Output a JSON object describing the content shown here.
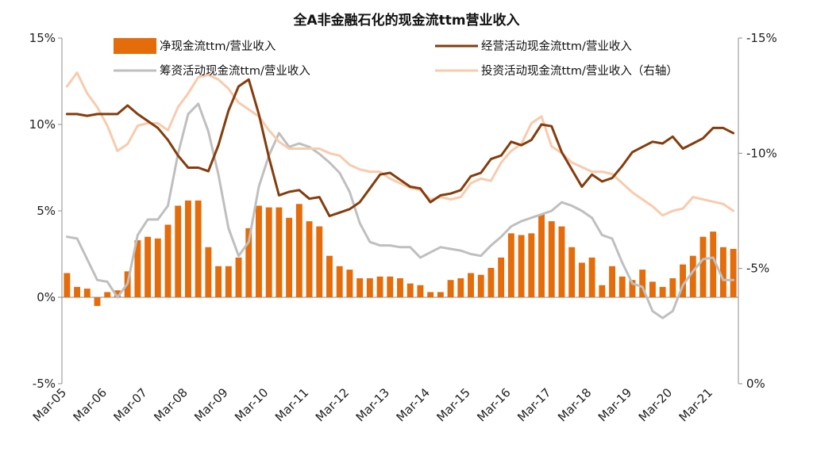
{
  "chart_data": {
    "type": "bar",
    "title": "全A非金融石化的现金流ttm营业收入",
    "x_tick_labels": [
      "Mar-05",
      "Mar-06",
      "Mar-07",
      "Mar-08",
      "Mar-09",
      "Mar-10",
      "Mar-11",
      "Mar-12",
      "Mar-13",
      "Mar-14",
      "Mar-15",
      "Mar-16",
      "Mar-17",
      "Mar-18",
      "Mar-19",
      "Mar-20",
      "Mar-21"
    ],
    "y_left": {
      "range": [
        -5,
        15
      ],
      "ticks": [
        "15%",
        "10%",
        "5%",
        "0%",
        "-5%"
      ]
    },
    "y_right": {
      "range": [
        0,
        -15
      ],
      "ticks": [
        "-15%",
        "-10%",
        "-5%",
        "0%"
      ],
      "reversed": true
    },
    "legend_position": "top",
    "quarters_start": "2005Q1",
    "series": [
      {
        "name": "净现金流ttm/营业收入",
        "type": "bar",
        "axis": "left",
        "color": "#E46C0A",
        "values": [
          1.4,
          0.6,
          0.5,
          -0.5,
          0.3,
          0.4,
          1.5,
          3.3,
          3.5,
          3.4,
          4.2,
          5.3,
          5.6,
          5.6,
          2.9,
          1.8,
          1.8,
          2.3,
          4.0,
          5.3,
          5.2,
          5.2,
          4.6,
          5.4,
          4.4,
          4.1,
          2.4,
          1.8,
          1.6,
          1.1,
          1.1,
          1.2,
          1.2,
          1.1,
          0.8,
          0.7,
          0.3,
          0.3,
          1.0,
          1.1,
          1.4,
          1.3,
          1.7,
          2.3,
          3.7,
          3.6,
          3.7,
          4.8,
          4.4,
          4.1,
          2.9,
          2.0,
          2.3,
          0.7,
          1.8,
          1.2,
          1.0,
          1.6,
          0.9,
          0.6,
          1.1,
          1.9,
          2.4,
          3.5,
          3.8,
          2.9,
          2.8
        ]
      },
      {
        "name": "经营活动现金流ttm/营业收入",
        "type": "line",
        "axis": "left",
        "color": "#843C0C",
        "values": [
          10.6,
          10.6,
          10.5,
          10.6,
          10.6,
          10.6,
          11.1,
          10.6,
          10.2,
          9.8,
          9.1,
          8.2,
          7.5,
          7.5,
          7.3,
          8.8,
          10.8,
          12.2,
          12.6,
          10.6,
          8.1,
          5.9,
          6.1,
          6.2,
          5.7,
          5.8,
          4.7,
          4.9,
          5.1,
          5.5,
          6.3,
          7.1,
          7.2,
          6.8,
          6.4,
          6.3,
          5.5,
          5.9,
          6.0,
          6.2,
          7.0,
          7.2,
          8.0,
          8.2,
          9.0,
          8.8,
          9.1,
          10.0,
          9.9,
          8.4,
          7.4,
          6.4,
          7.1,
          6.7,
          6.9,
          7.6,
          8.4,
          8.7,
          9.0,
          8.9,
          9.3,
          8.6,
          8.9,
          9.2,
          9.8,
          9.8,
          9.5
        ]
      },
      {
        "name": "筹资活动现金流ttm/营业收入",
        "type": "line",
        "axis": "left",
        "color": "#BFBFBF",
        "values": [
          3.5,
          3.4,
          2.2,
          1.0,
          0.9,
          0.0,
          0.8,
          3.6,
          4.5,
          4.5,
          5.3,
          8.3,
          10.6,
          11.2,
          9.6,
          7.1,
          4.0,
          2.4,
          3.2,
          6.4,
          8.2,
          9.5,
          8.7,
          8.9,
          8.7,
          8.3,
          7.8,
          7.2,
          6.1,
          4.3,
          3.2,
          3.0,
          3.0,
          2.9,
          2.9,
          2.3,
          2.6,
          2.9,
          2.8,
          2.7,
          2.5,
          2.4,
          3.0,
          3.5,
          4.1,
          4.4,
          4.6,
          4.8,
          5.0,
          5.5,
          5.3,
          5.0,
          4.6,
          3.6,
          3.4,
          2.0,
          0.8,
          0.6,
          -0.8,
          -1.2,
          -0.8,
          0.7,
          1.5,
          2.2,
          2.3,
          1.0,
          1.0
        ]
      },
      {
        "name": "投资活动现金流ttm/营业收入（右轴）",
        "type": "line",
        "axis": "right",
        "color": "#F8CBAD",
        "values": [
          -12.9,
          -13.5,
          -12.6,
          -12.0,
          -11.2,
          -10.1,
          -10.4,
          -11.2,
          -11.3,
          -11.3,
          -11.0,
          -12.0,
          -12.6,
          -13.3,
          -13.4,
          -13.2,
          -12.8,
          -12.2,
          -11.9,
          -11.6,
          -11.0,
          -10.5,
          -10.2,
          -10.2,
          -10.2,
          -10.2,
          -10.0,
          -9.9,
          -9.5,
          -9.3,
          -9.2,
          -9.2,
          -8.9,
          -8.7,
          -8.5,
          -8.4,
          -8.0,
          -8.1,
          -8.0,
          -8.1,
          -8.7,
          -8.9,
          -8.8,
          -9.6,
          -10.1,
          -10.4,
          -11.3,
          -11.6,
          -10.3,
          -10.0,
          -9.6,
          -9.4,
          -9.2,
          -9.2,
          -9.1,
          -8.7,
          -8.3,
          -8.0,
          -7.7,
          -7.3,
          -7.5,
          -7.6,
          -8.1,
          -8.0,
          -7.9,
          -7.8,
          -7.5
        ]
      }
    ]
  }
}
